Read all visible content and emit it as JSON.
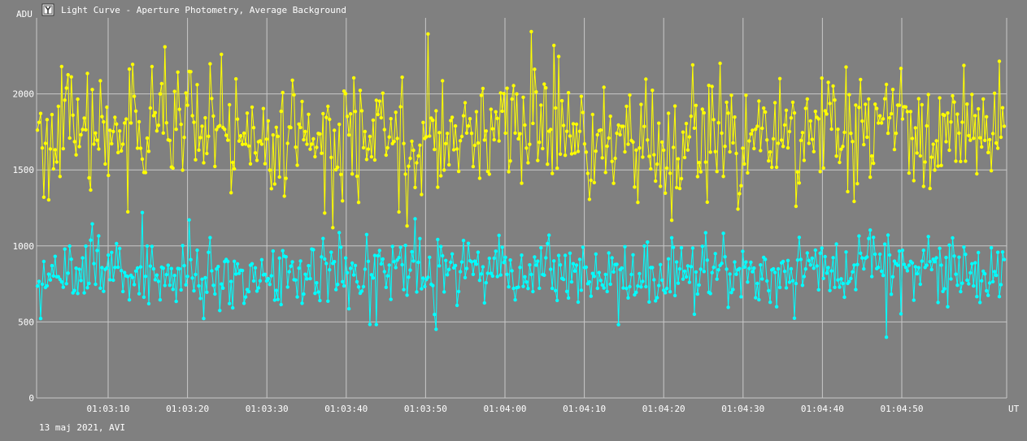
{
  "window": {
    "title": "Light Curve - Aperture Photometry, Average Background",
    "icon": "light-curve-app-icon"
  },
  "footer": {
    "date_label": "13 maj 2021, AVI"
  },
  "colors": {
    "background": "#808080",
    "grid": "#c8c8c8",
    "series_target": "#ffff00",
    "series_comparison": "#00ffff",
    "text": "#ffffff"
  },
  "chart_data": {
    "type": "line",
    "title": "Light Curve - Aperture Photometry, Average Background",
    "ylabel": "ADU",
    "xlabel": "UT",
    "ylim": [
      0,
      2500
    ],
    "y_ticks": [
      0,
      500,
      1000,
      1500,
      2000
    ],
    "x_tick_labels": [
      "01:03:10",
      "01:03:20",
      "01:03:30",
      "01:03:40",
      "01:03:50",
      "01:04:00",
      "01:04:10",
      "01:04:20",
      "01:04:30",
      "01:04:40",
      "01:04:50"
    ],
    "x_range_seconds": [
      "01:03:01",
      "01:04:62"
    ],
    "grid": true,
    "markers": "filled circles on each point",
    "series": [
      {
        "color": "#ffff00",
        "mean": 1720,
        "spread": 190,
        "min": 1120,
        "max": 2440,
        "notes": "noisy scatter, mostly 1400-2000 ADU"
      },
      {
        "color": "#00ffff",
        "mean": 830,
        "spread": 110,
        "min": 380,
        "max": 1280,
        "notes": "noisy scatter, mostly 650-1050 ADU"
      }
    ]
  }
}
